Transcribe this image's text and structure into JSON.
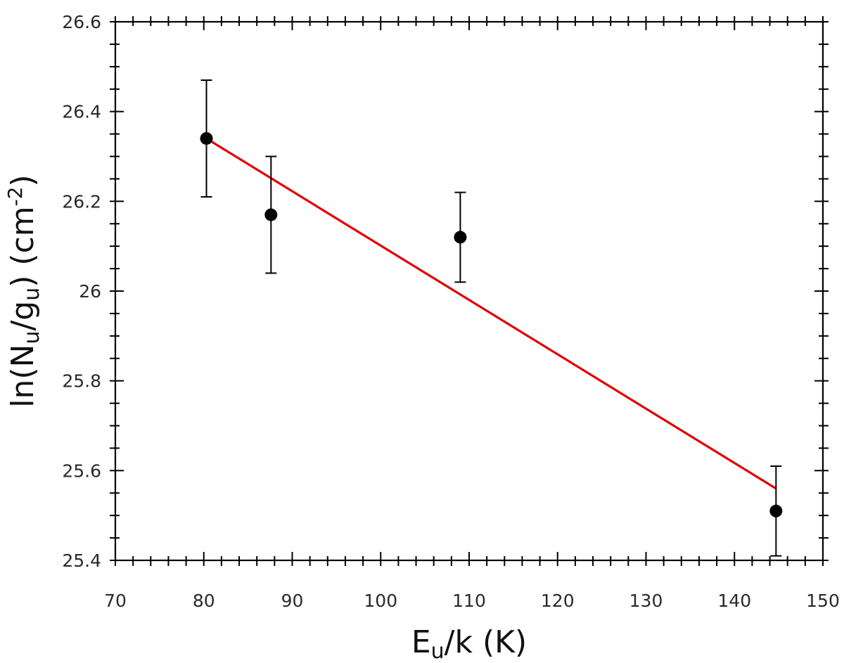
{
  "chart_data": {
    "type": "scatter",
    "title": "",
    "xlabel": {
      "main": "E",
      "sub": "u",
      "rest": "/k (K)"
    },
    "ylabel": {
      "pre": "ln(N",
      "sub1": "u",
      "mid": "/g",
      "sub2": "u",
      "post": ") (cm",
      "sup": "-2",
      "end": ")"
    },
    "xlim": [
      70,
      150
    ],
    "ylim": [
      25.4,
      26.6
    ],
    "xticks": [
      "70",
      "80",
      "90",
      "100",
      "110",
      "120",
      "130",
      "140",
      "150"
    ],
    "yticks": [
      "25.4",
      "25.6",
      "25.8",
      "26",
      "26.2",
      "26.4",
      "26.6"
    ],
    "grid": false,
    "legend": "none",
    "series": [
      {
        "points": [
          {
            "x": 80.3,
            "y": 26.34,
            "err": 0.13
          },
          {
            "x": 87.6,
            "y": 26.17,
            "err": 0.13
          },
          {
            "x": 109.0,
            "y": 26.12,
            "err": 0.1
          },
          {
            "x": 144.7,
            "y": 25.51,
            "err": 0.1
          }
        ],
        "color": "#000000"
      }
    ],
    "fit_line": {
      "x": [
        80.3,
        144.7
      ],
      "y": [
        26.34,
        25.56
      ],
      "color": "#e00000"
    }
  }
}
